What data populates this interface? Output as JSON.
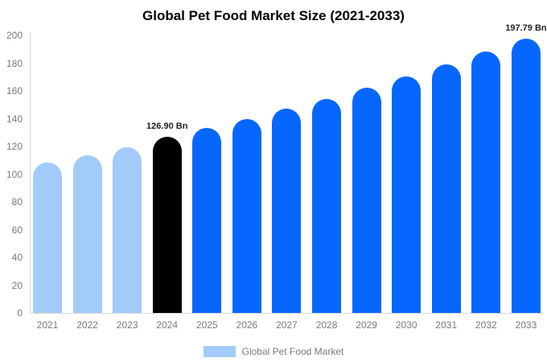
{
  "title": "Global Pet Food Market Size (2021-2033)",
  "legend": {
    "label": "Global Pet Food Market",
    "swatch_color": "#a2cbfa"
  },
  "colors": {
    "historical_bar": "#a2cbfa",
    "highlight_bar": "#010101",
    "forecast_bar": "#0667ff",
    "axis_line": "#d9d9d9",
    "tick_text": "#7a7a7a",
    "annotation_text": "#1f1f1f"
  },
  "chart_data": {
    "type": "bar",
    "title": "Global Pet Food Market Size (2021-2033)",
    "series_name": "Global Pet Food Market",
    "categories": [
      "2021",
      "2022",
      "2023",
      "2024",
      "2025",
      "2026",
      "2027",
      "2028",
      "2029",
      "2030",
      "2031",
      "2032",
      "2033"
    ],
    "values": [
      108.5,
      113.6,
      119.4,
      126.9,
      133.3,
      140.0,
      147.1,
      154.5,
      162.3,
      170.5,
      179.1,
      188.2,
      197.79
    ],
    "unit": "Bn",
    "bar_roles": [
      "historical",
      "historical",
      "historical",
      "highlight",
      "forecast",
      "forecast",
      "forecast",
      "forecast",
      "forecast",
      "forecast",
      "forecast",
      "forecast",
      "forecast"
    ],
    "annotations": {
      "2024": "126.90 Bn",
      "2033": "197.79 Bn"
    },
    "xlabel": "",
    "ylabel": "",
    "ylim": [
      0,
      200
    ],
    "yticks": [
      0,
      20,
      40,
      60,
      80,
      100,
      120,
      140,
      160,
      180,
      200
    ],
    "grid": false,
    "legend_position": "bottom"
  }
}
